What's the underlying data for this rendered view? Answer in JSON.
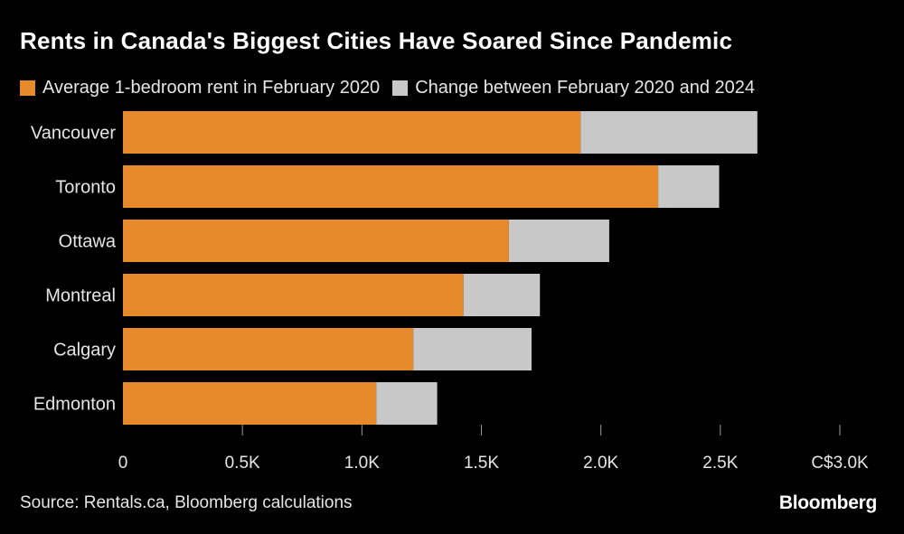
{
  "title": "Rents in Canada's Biggest Cities Have Soared Since Pandemic",
  "legend": [
    {
      "label": "Average 1-bedroom rent in February 2020",
      "color": "#e68a2b"
    },
    {
      "label": "Change between February 2020 and 2024",
      "color": "#c8c8c8"
    }
  ],
  "source": "Source: Rentals.ca, Bloomberg calculations",
  "brand": "Bloomberg",
  "chart_data": {
    "type": "bar",
    "orientation": "horizontal",
    "stacked": true,
    "categories": [
      "Vancouver",
      "Toronto",
      "Ottawa",
      "Montreal",
      "Calgary",
      "Edmonton"
    ],
    "series": [
      {
        "name": "Average 1-bedroom rent in February 2020",
        "color": "#e68a2b",
        "values": [
          1915,
          2240,
          1615,
          1425,
          1215,
          1060
        ]
      },
      {
        "name": "Change between February 2020 and 2024",
        "color": "#c8c8c8",
        "values": [
          740,
          255,
          420,
          320,
          495,
          255
        ]
      }
    ],
    "xlim": [
      0,
      3000
    ],
    "x_ticks": [
      0,
      500,
      1000,
      1500,
      2000,
      2500,
      3000
    ],
    "x_tick_labels": [
      "0",
      "0.5K",
      "1.0K",
      "1.5K",
      "2.0K",
      "2.5K",
      "C$3.0K"
    ],
    "grid": false
  }
}
